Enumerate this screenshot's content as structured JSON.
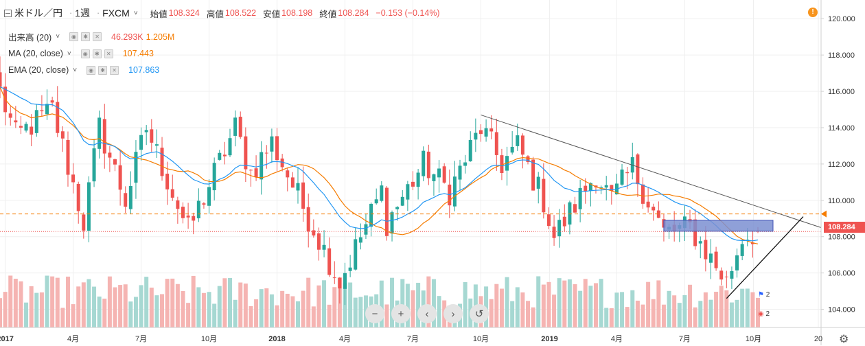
{
  "header": {
    "symbol": "米ドル／円",
    "interval": "1週",
    "source": "FXCM",
    "ohlc": [
      {
        "label": "始値",
        "value": "108.324"
      },
      {
        "label": "高値",
        "value": "108.522"
      },
      {
        "label": "安値",
        "value": "108.198"
      },
      {
        "label": "終値",
        "value": "108.284"
      }
    ],
    "change": "−0.153 (−0.14%)"
  },
  "indicators": [
    {
      "name": "出来高 (20)",
      "values": [
        "46.293K",
        "1.205M"
      ],
      "colors": [
        "#ef5350",
        "#f57c00"
      ]
    },
    {
      "name": "MA (20, close)",
      "values": [
        "107.443"
      ],
      "colors": [
        "#f57c00"
      ]
    },
    {
      "name": "EMA (20, close)",
      "values": [
        "107.863"
      ],
      "colors": [
        "#2196f3"
      ]
    }
  ],
  "price_tag": "108.284",
  "event_badges": [
    "2",
    "2"
  ],
  "zoom_buttons": [
    "−",
    "+",
    "‹",
    "›",
    "↺"
  ],
  "colors": {
    "up": "#26a69a",
    "down": "#ef5350",
    "ma": "#f57c00",
    "ema": "#2196f3",
    "vol_up": "#a6d8d2",
    "vol_down": "#f5b4b2",
    "hline": "#f57c00",
    "rect": "#7b8fd1"
  },
  "chart_data": {
    "type": "candlestick",
    "symbol": "米ドル／円",
    "y_axis": {
      "ticks": [
        104.0,
        106.0,
        108.0,
        110.0,
        112.0,
        114.0,
        116.0,
        118.0,
        120.0
      ],
      "range": [
        103.0,
        120.5
      ]
    },
    "x_axis": {
      "ticks": [
        "2017",
        "4月",
        "7月",
        "10月",
        "2018",
        "4月",
        "7月",
        "10月",
        "2019",
        "4月",
        "7月",
        "10月",
        "20"
      ]
    },
    "current_price": 108.284,
    "ma_last": 107.443,
    "ema_last": 107.863,
    "horizontal_level": 109.25,
    "anchors": [
      [
        "2016-12-26",
        116.0
      ],
      [
        "2017-01-16",
        113.5
      ],
      [
        "2017-03-06",
        115.0
      ],
      [
        "2017-04-17",
        108.8
      ],
      [
        "2017-05-08",
        114.0
      ],
      [
        "2017-06-12",
        110.0
      ],
      [
        "2017-07-10",
        114.0
      ],
      [
        "2017-09-04",
        108.3
      ],
      [
        "2017-11-06",
        114.0
      ],
      [
        "2017-11-27",
        111.5
      ],
      [
        "2017-12-25",
        113.2
      ],
      [
        "2018-03-26",
        105.5
      ],
      [
        "2018-05-21",
        110.5
      ],
      [
        "2018-05-28",
        108.8
      ],
      [
        "2018-07-16",
        112.0
      ],
      [
        "2018-08-20",
        110.5
      ],
      [
        "2018-10-01",
        114.0
      ],
      [
        "2018-10-29",
        112.0
      ],
      [
        "2018-11-19",
        113.0
      ],
      [
        "2018-12-24",
        110.0
      ],
      [
        "2019-01-07",
        108.0
      ],
      [
        "2019-03-04",
        111.5
      ],
      [
        "2019-03-25",
        110.0
      ],
      [
        "2019-04-22",
        111.8
      ],
      [
        "2019-06-03",
        108.2
      ],
      [
        "2019-07-08",
        108.5
      ],
      [
        "2019-08-26",
        105.5
      ],
      [
        "2019-09-16",
        108.0
      ],
      [
        "2019-10-07",
        108.3
      ]
    ],
    "volume": {
      "last": "46.293K",
      "average": "1.205M"
    },
    "ohlc_last": {
      "open": 108.324,
      "high": 108.522,
      "low": 108.198,
      "close": 108.284,
      "change": -0.153,
      "change_pct": -0.14
    }
  }
}
